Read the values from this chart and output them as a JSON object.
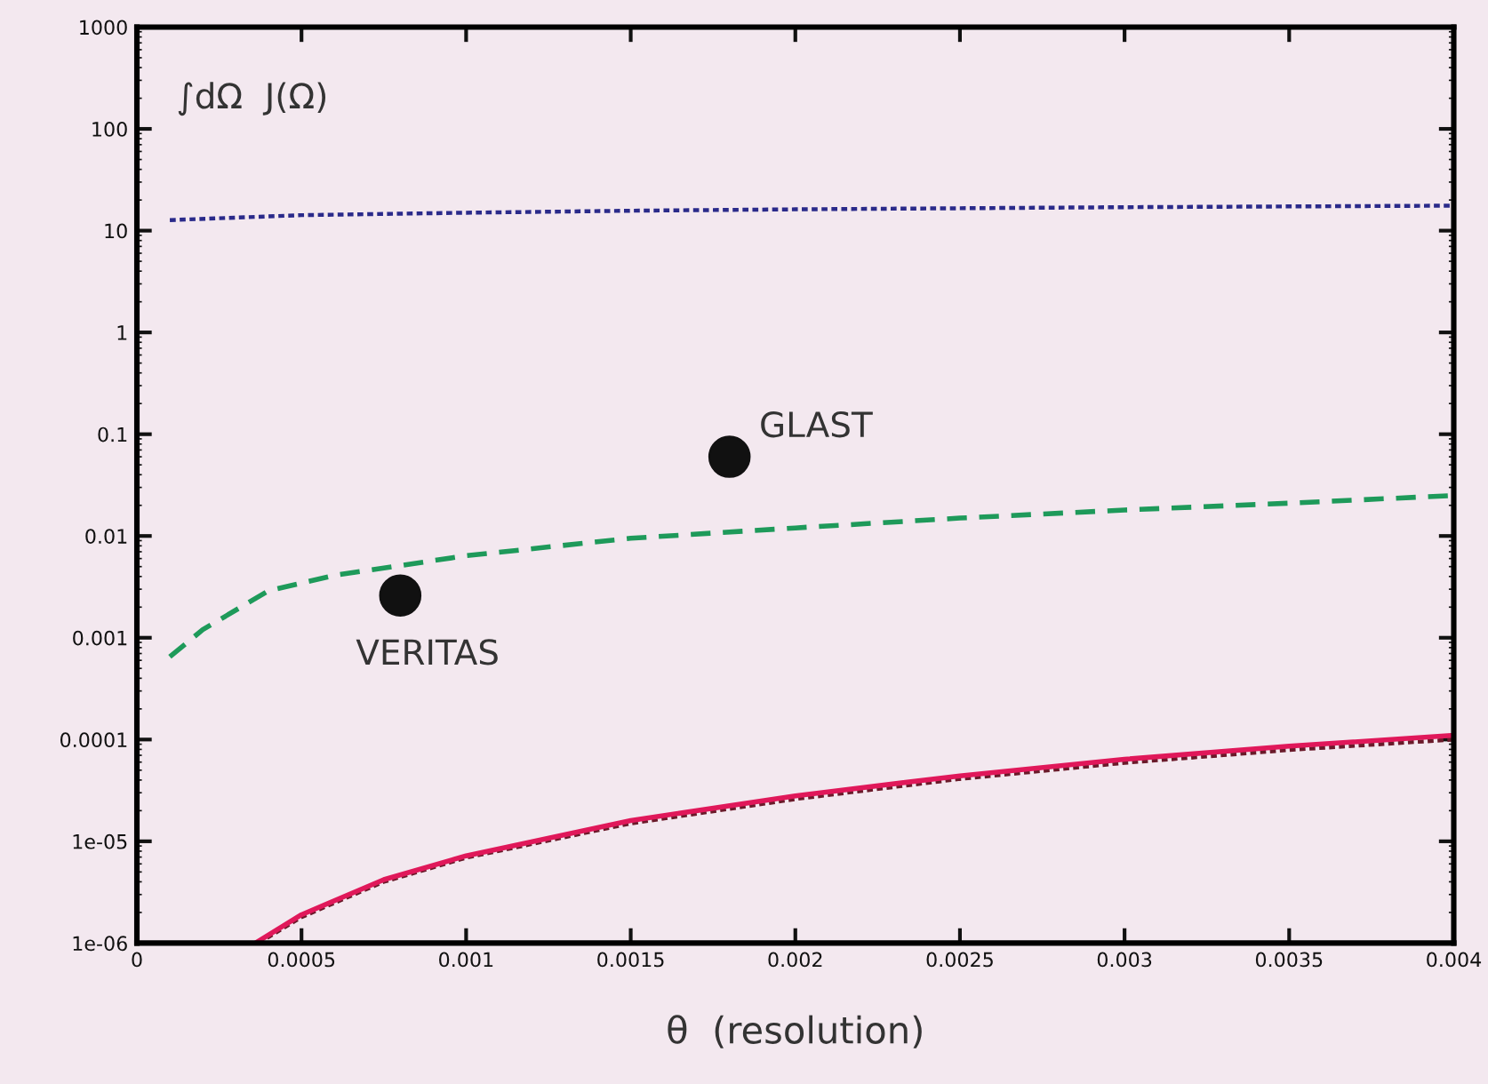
{
  "chart_data": {
    "type": "line",
    "xlabel": "θ  (resolution)",
    "annotations": [
      "∫dΩ  J(Ω)",
      {
        "text": "GLAST",
        "x": 0.0018,
        "y": 0.06
      },
      {
        "text": "VERITAS",
        "x": 0.0008,
        "y": 0.0026
      }
    ],
    "series": [
      {
        "color": "#2a2a8a",
        "line_style": "dotted",
        "x": [
          0.0001,
          0.0005,
          0.001,
          0.0015,
          0.002,
          0.0025,
          0.003,
          0.0035,
          0.004
        ],
        "values": [
          12.7,
          14.2,
          15.0,
          15.7,
          16.2,
          16.6,
          17.0,
          17.3,
          17.6
        ]
      },
      {
        "color": "#1e9a5a",
        "line_style": "dashed",
        "x": [
          0.0001,
          0.0002,
          0.0004,
          0.0006,
          0.001,
          0.0015,
          0.002,
          0.0025,
          0.003,
          0.0035,
          0.004
        ],
        "values": [
          0.00065,
          0.0012,
          0.0029,
          0.0041,
          0.0064,
          0.0095,
          0.012,
          0.015,
          0.018,
          0.021,
          0.025
        ]
      },
      {
        "color": "#6a1a2a",
        "line_style": "dotted",
        "x": [
          0.00037,
          0.0005,
          0.00075,
          0.001,
          0.0015,
          0.002,
          0.0025,
          0.003,
          0.0035,
          0.004
        ],
        "values": [
          1e-06,
          1.8e-06,
          4e-06,
          6.9e-06,
          1.5e-05,
          2.6e-05,
          4.1e-05,
          5.9e-05,
          7.9e-05,
          0.0001
        ]
      },
      {
        "color": "#e0185a",
        "line_style": "solid",
        "x": [
          0.00036,
          0.0005,
          0.00075,
          0.001,
          0.0015,
          0.002,
          0.0025,
          0.003,
          0.0035,
          0.004
        ],
        "values": [
          1e-06,
          1.9e-06,
          4.2e-06,
          7.2e-06,
          1.6e-05,
          2.8e-05,
          4.4e-05,
          6.4e-05,
          8.6e-05,
          0.00011
        ]
      },
      {
        "type": "scatter",
        "color": "#111111",
        "marker": "circle",
        "x": [
          0.0008,
          0.0018
        ],
        "values": [
          0.0026,
          0.06
        ]
      }
    ],
    "log": "y",
    "xlim": [
      0,
      0.004
    ],
    "ylim": [
      1e-06,
      1000
    ],
    "xticks": [
      0,
      0.0005,
      0.001,
      0.0015,
      0.002,
      0.0025,
      0.003,
      0.0035,
      0.004
    ],
    "yticks": [
      {
        "value": 1e-06,
        "label": "1e-06"
      },
      {
        "value": 1e-05,
        "label": "1e-05"
      },
      0.0001,
      0.001,
      0.01,
      0.1,
      1,
      10,
      100,
      1000
    ],
    "grid": false
  }
}
